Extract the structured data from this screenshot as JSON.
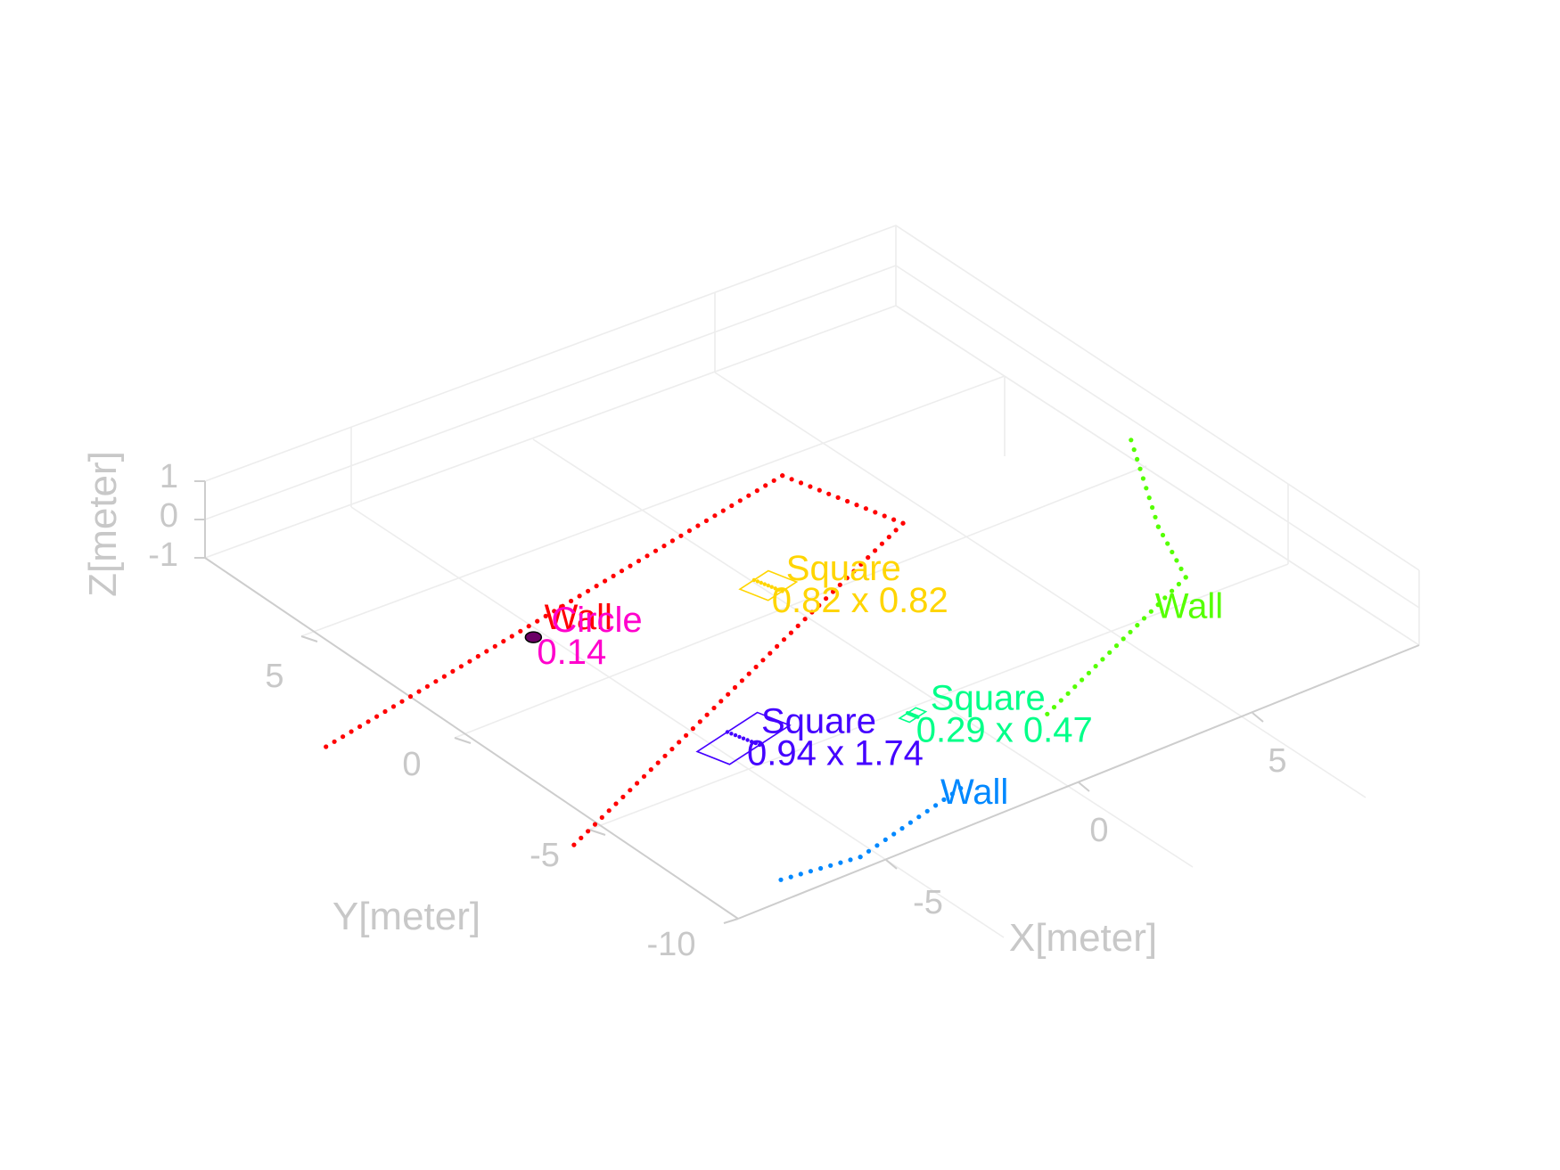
{
  "chart_data": {
    "type": "scatter",
    "view": "3d",
    "title": "",
    "xlabel": "X[meter]",
    "ylabel": "Y[meter]",
    "zlabel": "Z[meter]",
    "xlim": [
      -10,
      10
    ],
    "ylim": [
      -10,
      10
    ],
    "zlim": [
      -1,
      1
    ],
    "x_ticks": [
      "-5",
      "0",
      "5"
    ],
    "y_ticks": [
      "-10",
      "-5",
      "0",
      "5"
    ],
    "z_ticks": [
      "-1",
      "0",
      "1"
    ],
    "grid": true,
    "legend": "none",
    "colors": {
      "wall_red": "#ff0000",
      "circle": "#ff00cc",
      "square_purple": "#4400ff",
      "square_teal": "#00ff88",
      "square_yellow": "#ffd500",
      "wall_blue": "#0088ff",
      "wall_green": "#55ff00"
    },
    "objects": [
      {
        "kind": "wall",
        "color": "wall_red",
        "label": "Wall",
        "x": -5.2,
        "y": 5.5,
        "z": 0,
        "points": [
          [
            -5.7,
            10.8,
            0
          ],
          [
            -5.0,
            -1.7,
            0
          ],
          [
            -1.5,
            -1.7,
            0
          ],
          [
            1.5,
            10.8,
            0
          ]
        ]
      },
      {
        "kind": "circle",
        "color": "circle",
        "label": "Circle",
        "size": "0.14",
        "x": -5.0,
        "y": 5.5,
        "z": 0
      },
      {
        "kind": "square",
        "color": "square_purple",
        "label": "Square",
        "size": "0.94 x 1.74",
        "x": 1.6,
        "y": 6.0,
        "z": 0
      },
      {
        "kind": "square",
        "color": "square_teal",
        "label": "Square",
        "size": "0.29 x 0.47",
        "x": 4.0,
        "y": 3.5,
        "z": 0
      },
      {
        "kind": "square",
        "color": "square_yellow",
        "label": "Square",
        "size": "0.82 x 0.82",
        "x": -2.2,
        "y": 1.5,
        "z": 0
      },
      {
        "kind": "wall",
        "color": "wall_blue",
        "label": "Wall",
        "x": 6.8,
        "y": 6.0,
        "z": 0,
        "points": [
          [
            6.2,
            9.5,
            0
          ],
          [
            7.0,
            8.0,
            0
          ],
          [
            6.9,
            5.0,
            0
          ]
        ]
      },
      {
        "kind": "wall",
        "color": "wall_green",
        "label": "Wall",
        "x": 5.5,
        "y": -1.5,
        "z": 0,
        "points": [
          [
            0.3,
            -6.5,
            0
          ],
          [
            3.2,
            -4.4,
            0
          ],
          [
            5.1,
            -3.3,
            0
          ],
          [
            6.4,
            2.0,
            0
          ]
        ]
      }
    ]
  }
}
